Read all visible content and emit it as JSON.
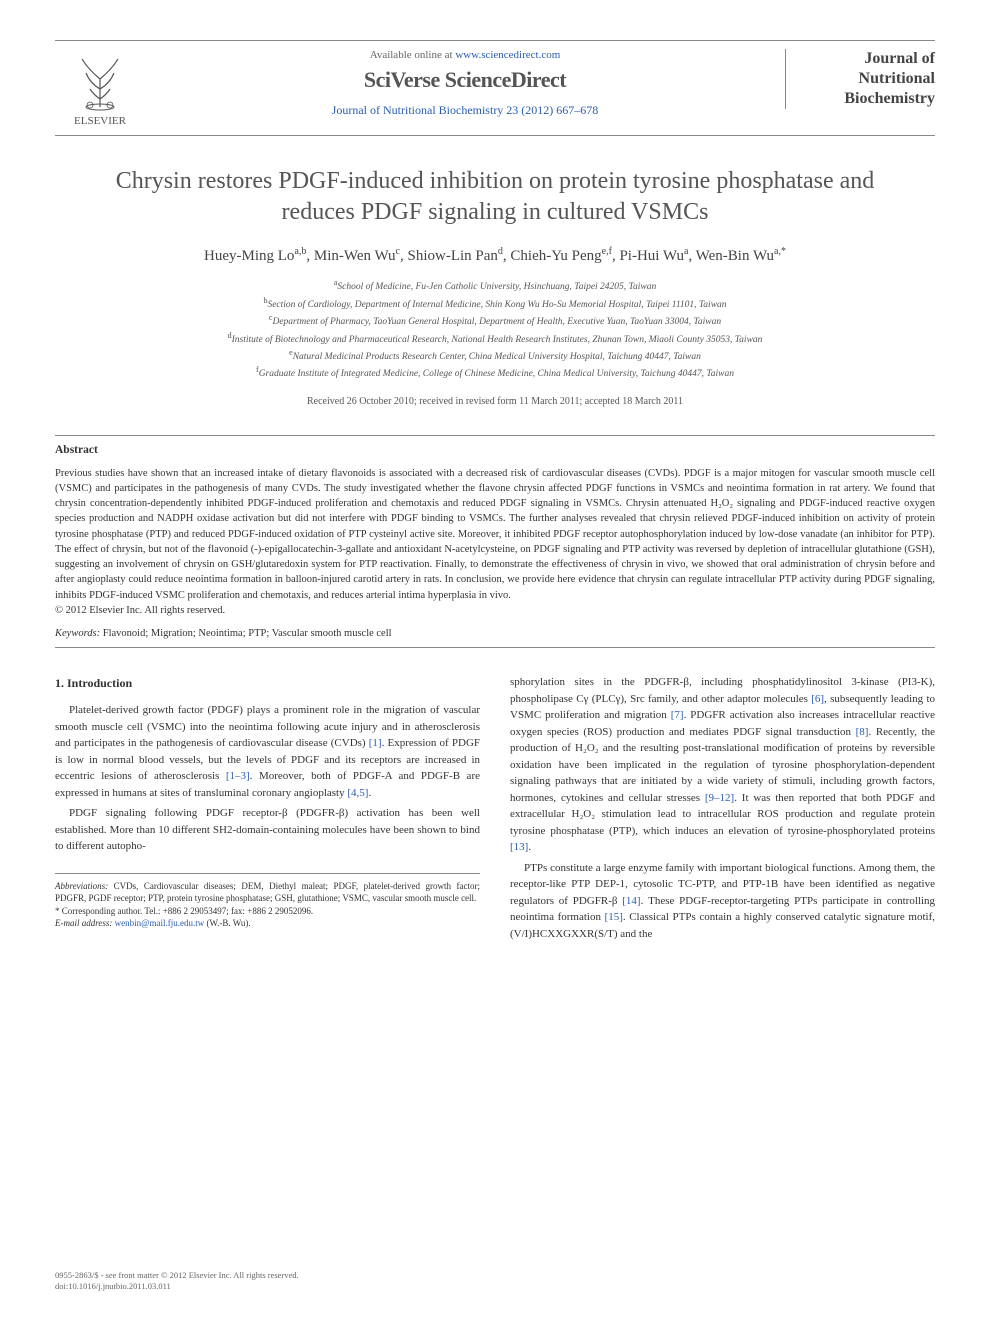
{
  "header": {
    "available_text": "Available online at ",
    "available_url": "www.sciencedirect.com",
    "brand": "SciVerse ScienceDirect",
    "journal_ref": "Journal of Nutritional Biochemistry 23 (2012) 667–678",
    "publisher": "ELSEVIER",
    "journal_name_l1": "Journal of",
    "journal_name_l2": "Nutritional",
    "journal_name_l3": "Biochemistry"
  },
  "article": {
    "title": "Chrysin restores PDGF-induced inhibition on protein tyrosine phosphatase and reduces PDGF signaling in cultured VSMCs",
    "authors_html": "Huey-Ming Lo<sup>a,b</sup>, Min-Wen Wu<sup>c</sup>, Shiow-Lin Pan<sup>d</sup>, Chieh-Yu Peng<sup>e,f</sup>, Pi-Hui Wu<sup>a</sup>, Wen-Bin Wu<sup>a,*</sup>",
    "affiliations": [
      "<sup>a</sup>School of Medicine, Fu-Jen Catholic University, Hsinchuang, Taipei 24205, Taiwan",
      "<sup>b</sup>Section of Cardiology, Department of Internal Medicine, Shin Kong Wu Ho-Su Memorial Hospital, Taipei 11101, Taiwan",
      "<sup>c</sup>Department of Pharmacy, TaoYuan General Hospital, Department of Health, Executive Yuan, TaoYuan 33004, Taiwan",
      "<sup>d</sup>Institute of Biotechnology and Pharmaceutical Research, National Health Research Institutes, Zhunan Town, Miaoli County 35053, Taiwan",
      "<sup>e</sup>Natural Medicinal Products Research Center, China Medical University Hospital, Taichung 40447, Taiwan",
      "<sup>f</sup>Graduate Institute of Integrated Medicine, College of Chinese Medicine, China Medical University, Taichung 40447, Taiwan"
    ],
    "dates": "Received 26 October 2010; received in revised form 11 March 2011; accepted 18 March 2011"
  },
  "abstract": {
    "label": "Abstract",
    "body": "Previous studies have shown that an increased intake of dietary flavonoids is associated with a decreased risk of cardiovascular diseases (CVDs). PDGF is a major mitogen for vascular smooth muscle cell (VSMC) and participates in the pathogenesis of many CVDs. The study investigated whether the flavone chrysin affected PDGF functions in VSMCs and neointima formation in rat artery. We found that chrysin concentration-dependently inhibited PDGF-induced proliferation and chemotaxis and reduced PDGF signaling in VSMCs. Chrysin attenuated H₂O₂ signaling and PDGF-induced reactive oxygen species production and NADPH oxidase activation but did not interfere with PDGF binding to VSMCs. The further analyses revealed that chrysin relieved PDGF-induced inhibition on activity of protein tyrosine phosphatase (PTP) and reduced PDGF-induced oxidation of PTP cysteinyl active site. Moreover, it inhibited PDGF receptor autophosphorylation induced by low-dose vanadate (an inhibitor for PTP). The effect of chrysin, but not of the flavonoid (-)-epigallocatechin-3-gallate and antioxidant N-acetylcysteine, on PDGF signaling and PTP activity was reversed by depletion of intracellular glutathione (GSH), suggesting an involvement of chrysin on GSH/glutaredoxin system for PTP reactivation. Finally, to demonstrate the effectiveness of chrysin in vivo, we showed that oral administration of chrysin before and after angioplasty could reduce neointima formation in balloon-injured carotid artery in rats. In conclusion, we provide here evidence that chrysin can regulate intracellular PTP activity during PDGF signaling, inhibits PDGF-induced VSMC proliferation and chemotaxis, and reduces arterial intima hyperplasia in vivo.",
    "copyright": "© 2012 Elsevier Inc. All rights reserved.",
    "keywords_label": "Keywords:",
    "keywords": "Flavonoid; Migration; Neointima; PTP; Vascular smooth muscle cell"
  },
  "body": {
    "section1_heading": "1. Introduction",
    "col1_p1": "Platelet-derived growth factor (PDGF) plays a prominent role in the migration of vascular smooth muscle cell (VSMC) into the neointima following acute injury and in atherosclerosis and participates in the pathogenesis of cardiovascular disease (CVDs) [1]. Expression of PDGF is low in normal blood vessels, but the levels of PDGF and its receptors are increased in eccentric lesions of atherosclerosis [1–3]. Moreover, both of PDGF-A and PDGF-B are expressed in humans at sites of transluminal coronary angioplasty [4,5].",
    "col1_p2": "PDGF signaling following PDGF receptor-β (PDGFR-β) activation has been well established. More than 10 different SH2-domain-containing molecules have been shown to bind to different autopho-",
    "col2_p1": "sphorylation sites in the PDGFR-β, including phosphatidylinositol 3-kinase (PI3-K), phospholipase Cγ (PLCγ), Src family, and other adaptor molecules [6], subsequently leading to VSMC proliferation and migration [7]. PDGFR activation also increases intracellular reactive oxygen species (ROS) production and mediates PDGF signal transduction [8]. Recently, the production of H₂O₂ and the resulting post-translational modification of proteins by reversible oxidation have been implicated in the regulation of tyrosine phosphorylation-dependent signaling pathways that are initiated by a wide variety of stimuli, including growth factors, hormones, cytokines and cellular stresses [9–12]. It was then reported that both PDGF and extracellular H₂O₂ stimulation lead to intracellular ROS production and regulate protein tyrosine phosphatase (PTP), which induces an elevation of tyrosine-phosphorylated proteins [13].",
    "col2_p2": "PTPs constitute a large enzyme family with important biological functions. Among them, the receptor-like PTP DEP-1, cytosolic TC-PTP, and PTP-1B have been identified as negative regulators of PDGFR-β [14]. These PDGF-receptor-targeting PTPs participate in controlling neointima formation [15]. Classical PTPs contain a highly conserved catalytic signature motif, (V/I)HCXXGXXR(S/T) and the"
  },
  "footnotes": {
    "abbrev_label": "Abbreviations:",
    "abbrev_text": "CVDs, Cardiovascular diseases; DEM, Diethyl maleat; PDGF, platelet-derived growth factor; PDGFR, PGDF receptor; PTP, protein tyrosine phosphatase; GSH, glutathione; VSMC, vascular smooth muscle cell.",
    "corr_label": "* Corresponding author.",
    "corr_text": "Tel.: +886 2 29053497; fax: +886 2 29052096.",
    "email_label": "E-mail address:",
    "email": "wenbin@mail.fju.edu.tw",
    "email_suffix": "(W.-B. Wu)."
  },
  "footer": {
    "line1": "0955-2863/$ - see front matter © 2012 Elsevier Inc. All rights reserved.",
    "line2": "doi:10.1016/j.jnutbio.2011.03.011"
  },
  "colors": {
    "link": "#2a5db0",
    "text": "#333333",
    "rule": "#888888",
    "elsevier_orange": "#ff6600"
  }
}
